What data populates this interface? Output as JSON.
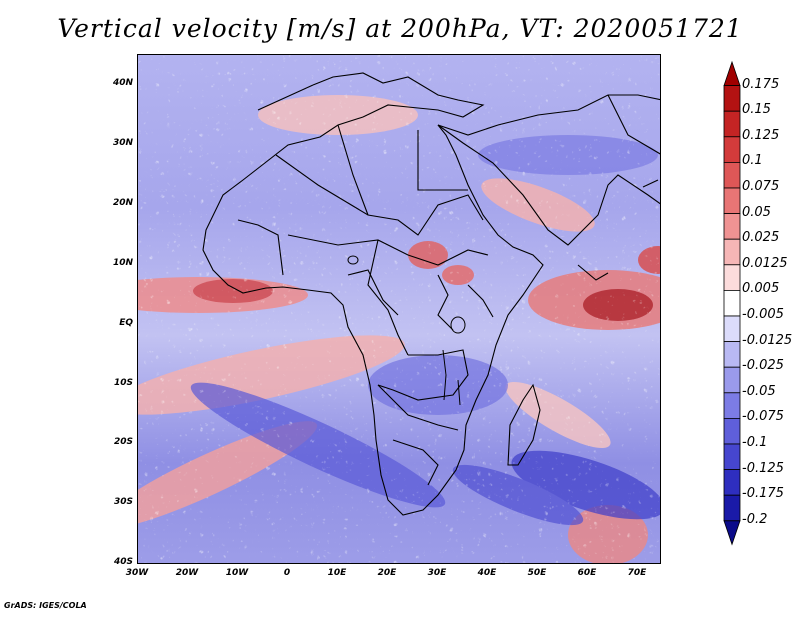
{
  "title": "Vertical velocity [m/s] at 200hPa, VT: 2020051721",
  "footer": "GrADS: IGES/COLA",
  "map": {
    "lon_range": [
      -30,
      75
    ],
    "lat_range": [
      -40,
      45
    ],
    "y_ticks": [
      "40N",
      "30N",
      "20N",
      "10N",
      "EQ",
      "10S",
      "20S",
      "30S",
      "40S"
    ],
    "x_ticks": [
      "30W",
      "20W",
      "10W",
      "0",
      "10E",
      "20E",
      "30E",
      "40E",
      "50E",
      "60E",
      "70E"
    ],
    "field": "vertical velocity",
    "level": "200hPa",
    "units": "m/s"
  },
  "colorbar": {
    "labels": [
      "0.175",
      "0.15",
      "0.125",
      "0.1",
      "0.075",
      "0.05",
      "0.025",
      "0.0125",
      "0.005",
      "-0.005",
      "-0.0125",
      "-0.025",
      "-0.05",
      "-0.075",
      "-0.1",
      "-0.125",
      "-0.175",
      "-0.2"
    ],
    "colors": [
      "#a00000",
      "#b31212",
      "#c42424",
      "#d33b3b",
      "#de5757",
      "#e87575",
      "#f09393",
      "#f6b6b6",
      "#fcdcdc",
      "#ffffff",
      "#dcdcfb",
      "#b9b9f3",
      "#9a9aec",
      "#7c7ce5",
      "#5f5fda",
      "#4646cf",
      "#2e2ebf",
      "#1a1aa8",
      "#0b0b8a"
    ]
  }
}
